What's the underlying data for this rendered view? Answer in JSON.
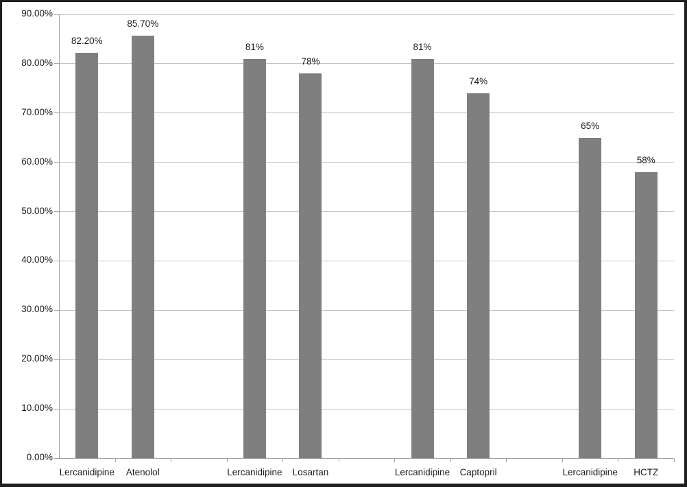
{
  "chart_data": {
    "type": "bar",
    "title": "",
    "xlabel": "",
    "ylabel": "",
    "legend": "none",
    "grid": "horizontal",
    "y_axis": {
      "min": 0,
      "max": 90,
      "step": 10,
      "tick_labels": [
        "0.00%",
        "10.00%",
        "20.00%",
        "30.00%",
        "40.00%",
        "50.00%",
        "60.00%",
        "70.00%",
        "80.00%",
        "90.00%"
      ]
    },
    "groups": [
      {
        "bars": [
          {
            "category": "Lercanidipine",
            "value": 82.2,
            "display": "82.20%"
          },
          {
            "category": "Atenolol",
            "value": 85.7,
            "display": "85.70%"
          }
        ]
      },
      {
        "bars": [
          {
            "category": "Lercanidipine",
            "value": 81,
            "display": "81%"
          },
          {
            "category": "Losartan",
            "value": 78,
            "display": "78%"
          }
        ]
      },
      {
        "bars": [
          {
            "category": "Lercanidipine",
            "value": 81,
            "display": "81%"
          },
          {
            "category": "Captopril",
            "value": 74,
            "display": "74%"
          }
        ]
      },
      {
        "bars": [
          {
            "category": "Lercanidipine",
            "value": 65,
            "display": "65%"
          },
          {
            "category": "HCTZ",
            "value": 58,
            "display": "58%"
          }
        ]
      }
    ],
    "colors": {
      "bar": "#7f7f7f",
      "gridline": "#c3c3c3",
      "axis": "#a3a3a3",
      "text": "#1a1a1a",
      "frame": "#1e1e1e",
      "background": "#ffffff"
    },
    "layout_hints": {
      "slots_total": 11,
      "bar_slots": [
        0,
        1,
        3,
        4,
        6,
        7,
        9,
        10
      ],
      "legend_position": "none"
    }
  }
}
